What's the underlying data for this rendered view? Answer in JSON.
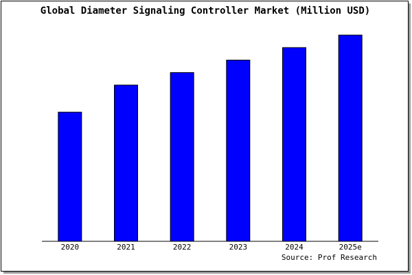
{
  "chart_data": {
    "type": "bar",
    "title": "Global Diameter Signaling Controller Market (Million USD)",
    "categories": [
      "2020",
      "2021",
      "2022",
      "2023",
      "2024",
      "2025e"
    ],
    "values": [
      62,
      75,
      81,
      87,
      93,
      99
    ],
    "color": "#0000ff",
    "ylim": [
      0,
      100
    ],
    "source": "Source: Prof Research"
  }
}
